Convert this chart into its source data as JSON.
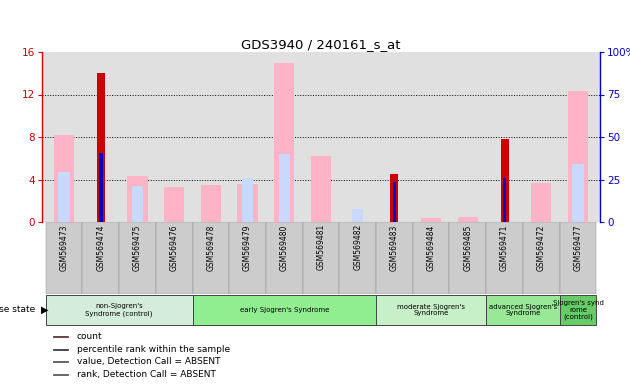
{
  "title": "GDS3940 / 240161_s_at",
  "samples": [
    "GSM569473",
    "GSM569474",
    "GSM569475",
    "GSM569476",
    "GSM569478",
    "GSM569479",
    "GSM569480",
    "GSM569481",
    "GSM569482",
    "GSM569483",
    "GSM569484",
    "GSM569485",
    "GSM569471",
    "GSM569472",
    "GSM569477"
  ],
  "count": [
    0,
    14,
    0,
    0,
    0,
    0,
    0,
    0,
    0,
    4.5,
    0,
    0,
    7.8,
    0,
    0
  ],
  "percentile": [
    0,
    6.5,
    0,
    0,
    0,
    0,
    0,
    0,
    0,
    3.8,
    0,
    0,
    4.1,
    0,
    0
  ],
  "value_absent": [
    8.2,
    0,
    4.3,
    3.3,
    3.5,
    3.6,
    15.0,
    6.2,
    0,
    0,
    0.4,
    0.5,
    0,
    3.7,
    12.3
  ],
  "rank_absent": [
    4.7,
    0,
    3.4,
    0,
    0,
    4.1,
    6.4,
    0,
    1.2,
    0,
    0,
    0,
    0,
    0,
    5.5
  ],
  "ylim_left": [
    0,
    16
  ],
  "ylim_right": [
    0,
    100
  ],
  "yticks_left": [
    0,
    4,
    8,
    12,
    16
  ],
  "yticks_right": [
    0,
    25,
    50,
    75,
    100
  ],
  "yticklabels_right": [
    "0",
    "25",
    "50",
    "75",
    "100%"
  ],
  "groups": [
    {
      "label": "non-Sjogren's\nSyndrome (control)",
      "start": 0,
      "end": 4,
      "color": "#d4edda"
    },
    {
      "label": "early Sjogren's Syndrome",
      "start": 4,
      "end": 9,
      "color": "#90ee90"
    },
    {
      "label": "moderate Sjogren's\nSyndrome",
      "start": 9,
      "end": 12,
      "color": "#c8f0c8"
    },
    {
      "label": "advanced Sjogren's\nSyndrome",
      "start": 12,
      "end": 14,
      "color": "#98e898"
    },
    {
      "label": "Sjogren's synd\nrome\n(control)",
      "start": 14,
      "end": 15,
      "color": "#66cc66"
    }
  ],
  "bar_width": 0.55,
  "color_count": "#cc0000",
  "color_percentile": "#0000cc",
  "color_value_absent": "#ffb3c6",
  "color_rank_absent": "#c8d8ff",
  "bg_plot": "#e0e0e0",
  "bg_xlabel": "#cccccc",
  "left_axis_color": "#cc0000",
  "right_axis_color": "#0000cc"
}
